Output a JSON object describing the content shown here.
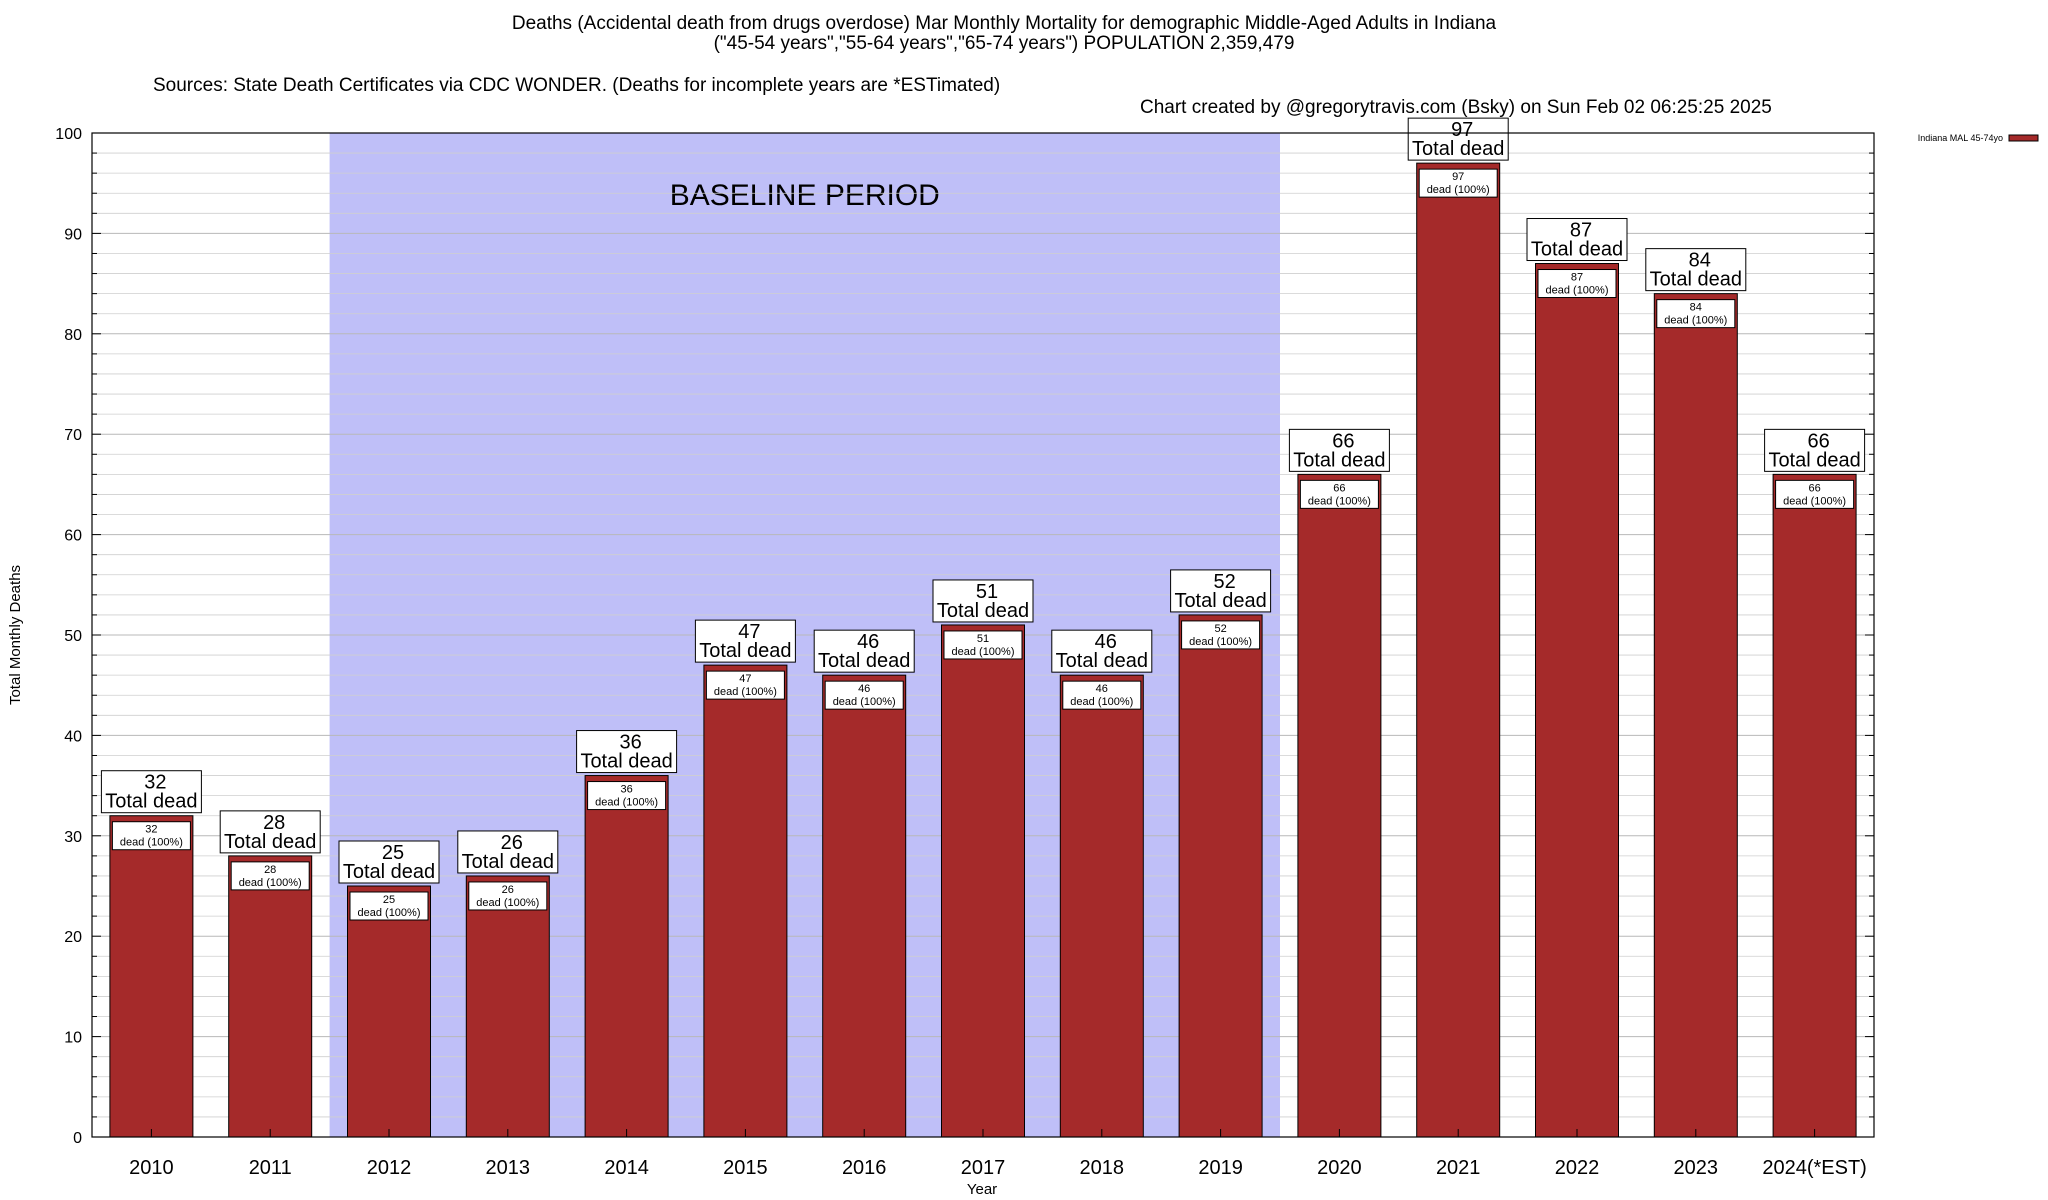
{
  "header": {
    "title_line1": "Deaths (Accidental death from drugs overdose) Mar Monthly Mortality for demographic Middle-Aged Adults in Indiana",
    "title_line2": "(\"45-54 years\",\"55-64 years\",\"65-74 years\") POPULATION 2,359,479",
    "sources": "Sources: State Death Certificates via CDC WONDER. (Deaths for incomplete years are *ESTimated)",
    "credit": "Chart created by @gregorytravis.com (Bsky) on Sun Feb 02 06:25:25 2025"
  },
  "chart_data": {
    "type": "bar",
    "xlabel": "Year",
    "ylabel": "Total Monthly Deaths",
    "ylim": [
      0,
      100
    ],
    "yticks": [
      0,
      10,
      20,
      30,
      40,
      50,
      60,
      70,
      80,
      90,
      100
    ],
    "grid": true,
    "legend_position": "top-right",
    "categories": [
      "2010",
      "2011",
      "2012",
      "2013",
      "2014",
      "2015",
      "2016",
      "2017",
      "2018",
      "2019",
      "2020",
      "2021",
      "2022",
      "2023",
      "2024(*EST)"
    ],
    "series": [
      {
        "name": "Indiana MAL 45-74yo",
        "values": [
          32,
          28,
          25,
          26,
          36,
          47,
          46,
          51,
          46,
          52,
          66,
          97,
          87,
          84,
          66
        ]
      }
    ],
    "top_label_suffix": "Total dead",
    "inner_label_suffix": "dead (100%)",
    "baseline": {
      "label": "BASELINE PERIOD",
      "start": "2012",
      "end": "2019"
    },
    "colors": {
      "bar": "#a52a2a",
      "baseline": "#bfbff8",
      "grid": "#cfcfcf"
    }
  }
}
